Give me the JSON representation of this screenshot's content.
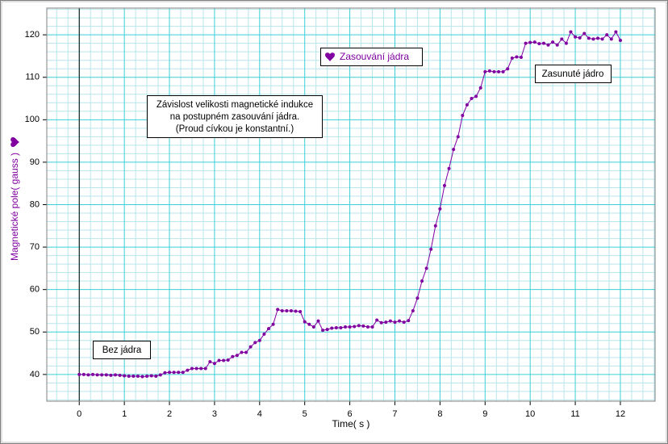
{
  "chart_data": {
    "type": "line",
    "xlabel": "Time( s )",
    "ylabel": "Magnetické pole( gauss )",
    "annotations": [
      "Bez jádra",
      "Zasunuté jádro"
    ],
    "note": [
      "Závislost velikosti magnetické indukce",
      "na postupném zasouvání jádra.",
      "(Proud cívkou je konstantní.)"
    ],
    "xlim": [
      -0.72,
      12.77
    ],
    "ylim": [
      33.7,
      126.3
    ],
    "xticks": [
      0,
      1,
      2,
      3,
      4,
      5,
      6,
      7,
      8,
      9,
      10,
      11,
      12
    ],
    "yticks": [
      40,
      50,
      60,
      70,
      80,
      90,
      100,
      110,
      120
    ],
    "xminorticks": [
      -0.5,
      -0.25,
      0.25,
      0.5,
      0.75,
      1.25,
      1.5,
      1.75,
      2.25,
      2.5,
      2.75,
      3.25,
      3.5,
      3.75,
      4.25,
      4.5,
      4.75,
      5.25,
      5.5,
      5.75,
      6.25,
      6.5,
      6.75,
      7.25,
      7.5,
      7.75,
      8.25,
      8.5,
      8.75,
      9.25,
      9.5,
      9.75,
      10.25,
      10.5,
      10.75,
      11.25,
      11.5,
      11.75,
      12.25,
      12.5,
      12.75
    ],
    "yminorticks": [
      34,
      36,
      38,
      42,
      44,
      46,
      48,
      52,
      54,
      56,
      58,
      62,
      64,
      66,
      68,
      72,
      74,
      76,
      78,
      82,
      84,
      86,
      88,
      92,
      94,
      96,
      98,
      102,
      104,
      106,
      108,
      112,
      114,
      116,
      118,
      122,
      124,
      126
    ],
    "grid": true,
    "x": [
      0,
      0.1,
      0.2,
      0.3,
      0.4,
      0.5,
      0.6,
      0.7,
      0.8,
      0.9,
      1,
      1.1,
      1.2,
      1.3,
      1.4,
      1.5,
      1.6,
      1.7,
      1.8,
      1.9,
      2,
      2.1,
      2.2,
      2.3,
      2.4,
      2.5,
      2.6,
      2.7,
      2.8,
      2.9,
      3,
      3.1,
      3.2,
      3.3,
      3.4,
      3.5,
      3.6,
      3.7,
      3.8,
      3.9,
      4,
      4.1,
      4.2,
      4.3,
      4.4,
      4.5,
      4.6,
      4.7,
      4.8,
      4.9,
      5,
      5.1,
      5.2,
      5.3,
      5.4,
      5.5,
      5.6,
      5.7,
      5.8,
      5.9,
      6,
      6.1,
      6.2,
      6.3,
      6.4,
      6.5,
      6.6,
      6.7,
      6.8,
      6.9,
      7,
      7.1,
      7.2,
      7.3,
      7.4,
      7.5,
      7.6,
      7.7,
      7.8,
      7.9,
      8,
      8.1,
      8.2,
      8.3,
      8.4,
      8.5,
      8.6,
      8.7,
      8.8,
      8.9,
      9,
      9.1,
      9.2,
      9.3,
      9.4,
      9.5,
      9.6,
      9.7,
      9.8,
      9.9,
      10,
      10.1,
      10.2,
      10.3,
      10.4,
      10.5,
      10.6,
      10.7,
      10.8,
      10.9,
      11,
      11.1,
      11.2,
      11.3,
      11.4,
      11.5,
      11.6,
      11.7,
      11.8,
      11.9,
      12
    ],
    "series": [
      {
        "name": "Zasouvání jádra",
        "color": "#8000a0",
        "values": [
          40,
          40,
          39.9,
          40,
          39.9,
          39.9,
          39.9,
          39.8,
          39.9,
          39.8,
          39.7,
          39.6,
          39.6,
          39.6,
          39.5,
          39.6,
          39.7,
          39.6,
          39.9,
          40.4,
          40.5,
          40.5,
          40.5,
          40.5,
          41,
          41.4,
          41.4,
          41.4,
          41.4,
          43,
          42.6,
          43.3,
          43.3,
          43.4,
          44.2,
          44.5,
          45.2,
          45.2,
          46.5,
          47.5,
          48,
          49.5,
          50.8,
          51.8,
          55.3,
          55,
          55,
          55,
          54.9,
          54.8,
          52.4,
          51.8,
          51.2,
          52.6,
          50.4,
          50.6,
          50.9,
          51,
          51,
          51.2,
          51.2,
          51.3,
          51.5,
          51.4,
          51.2,
          51.2,
          52.8,
          52.2,
          52.3,
          52.6,
          52.3,
          52.6,
          52.3,
          52.7,
          55,
          58,
          62,
          65,
          69.5,
          75,
          79,
          84.5,
          88.5,
          93,
          96,
          101,
          103.5,
          105,
          105.5,
          107.5,
          111.3,
          111.5,
          111.3,
          111.3,
          111.3,
          112,
          114.5,
          114.8,
          114.7,
          118,
          118.2,
          118.3,
          117.9,
          118,
          117.6,
          118.3,
          117.6,
          119,
          118,
          120.7,
          119.5,
          119.3,
          120.3,
          119.2,
          119,
          119.2,
          119,
          120,
          119,
          120.7,
          118.7
        ]
      }
    ]
  }
}
